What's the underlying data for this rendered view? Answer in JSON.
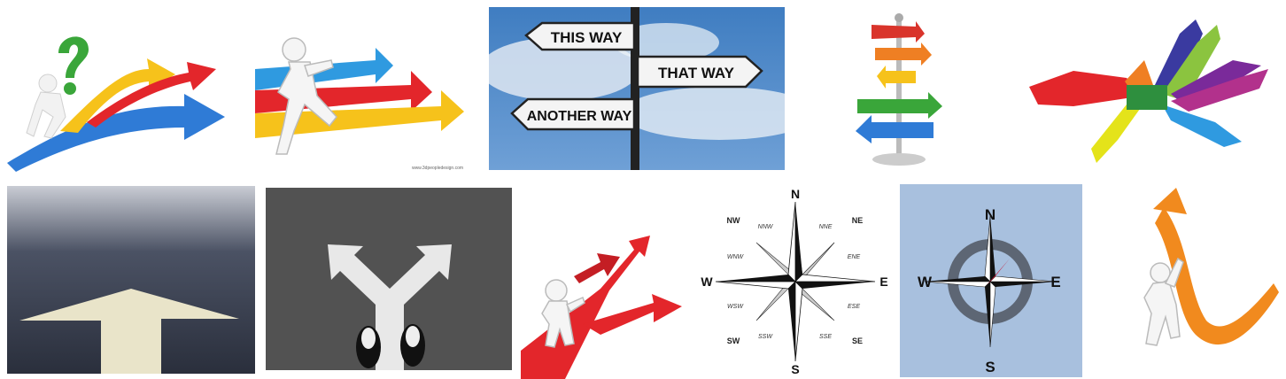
{
  "images": [
    {
      "subject": "figure with question mark on branching arrows"
    },
    {
      "subject": "walking figure with colored arrows",
      "watermark": "www.3dpeopledesign.com"
    },
    {
      "subject": "signpost",
      "signs": [
        "THIS WAY",
        "THAT WAY",
        "ANOTHER WAY"
      ]
    },
    {
      "subject": "colorful arrow signpost"
    },
    {
      "subject": "colorful pointing hands"
    },
    {
      "subject": "arrow painted on road"
    },
    {
      "subject": "forked arrow with sneakers"
    },
    {
      "subject": "figure at red branching path"
    },
    {
      "subject": "compass rose",
      "labels": {
        "n": "N",
        "s": "S",
        "e": "E",
        "w": "W",
        "ne": "NE",
        "nw": "NW",
        "se": "SE",
        "sw": "SW",
        "nne": "NNE",
        "nnw": "NNW",
        "ene": "ENE",
        "ese": "ESE",
        "sse": "SSE",
        "ssw": "SSW",
        "wnw": "WNW",
        "wsw": "WSW"
      }
    },
    {
      "subject": "compass rose on blue",
      "labels": {
        "n": "N",
        "s": "S",
        "e": "E",
        "w": "W"
      }
    },
    {
      "subject": "figure pushing orange arrow"
    }
  ],
  "colors": {
    "blue_bg": "#a8c0de",
    "sky": "#4f86c4",
    "red": "#e3262b",
    "orange": "#f18a1e",
    "yellow": "#f6c21b",
    "green": "#44a33b",
    "blue": "#2f7bd6"
  }
}
